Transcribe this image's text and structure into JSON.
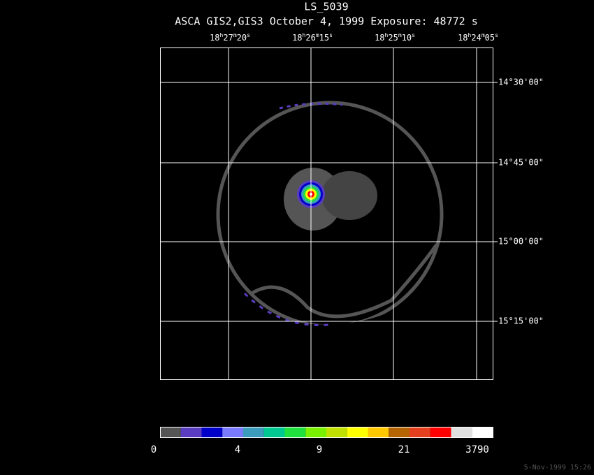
{
  "chart_data": {
    "type": "image",
    "title": "LS_5039",
    "subtitle": "ASCA GIS2,GIS3 October 4, 1999 Exposure: 48772 s",
    "x_tick_labels": [
      [
        "18",
        "h",
        "27",
        "m",
        "20",
        "s"
      ],
      [
        "18",
        "h",
        "26",
        "m",
        "15",
        "s"
      ],
      [
        "18",
        "h",
        "25",
        "m",
        "10",
        "s"
      ],
      [
        "18",
        "h",
        "24",
        "m",
        "05",
        "s"
      ]
    ],
    "y_tick_labels": [
      "14°30'00\"",
      "14°45'00\"",
      "15°00'00\"",
      "15°15'00\""
    ],
    "grid": true,
    "colorbar": {
      "colors": [
        "#555555",
        "#5a3cc0",
        "#0000c8",
        "#7a7aff",
        "#3c9cbc",
        "#00c890",
        "#20e040",
        "#78f000",
        "#c0e000",
        "#ffff00",
        "#ffc800",
        "#b46400",
        "#e44020",
        "#ff0000",
        "#e0e0e0",
        "#ffffff"
      ],
      "ticks": [
        0,
        4,
        9,
        21,
        3790
      ]
    },
    "footer": "5-Nov-1999 15:26"
  }
}
